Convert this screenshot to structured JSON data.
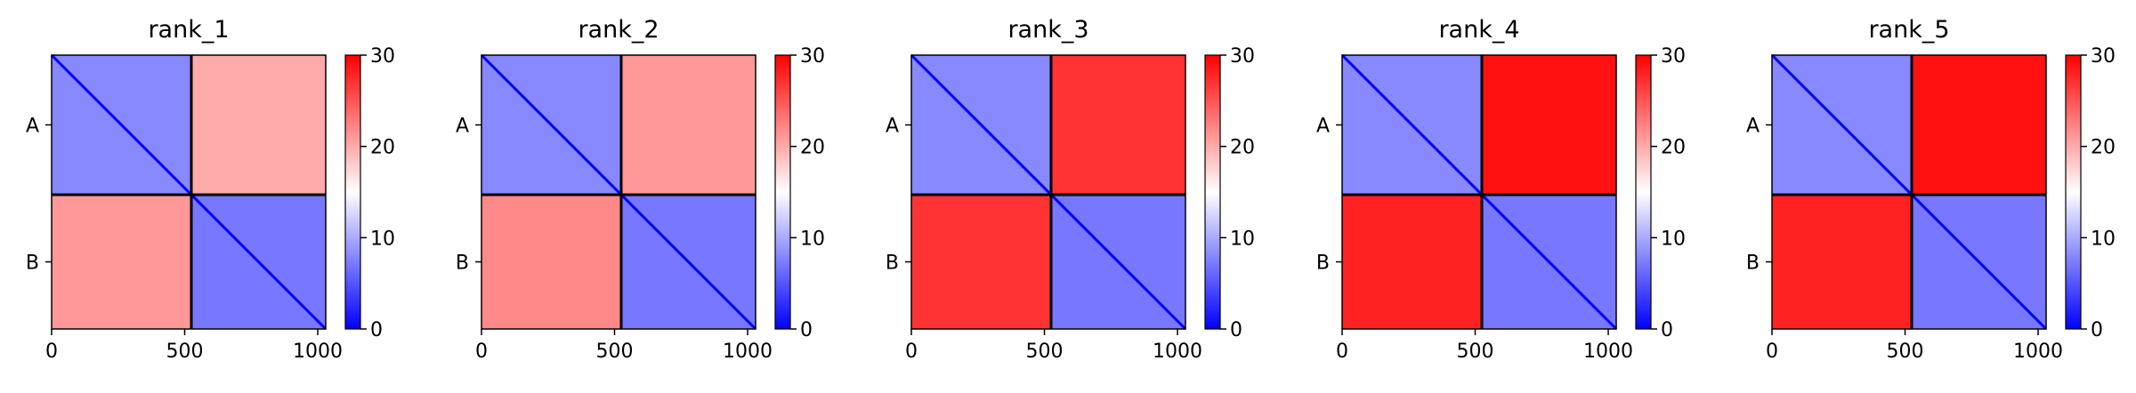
{
  "chart_data": [
    {
      "type": "heatmap",
      "title": "rank_1",
      "x_ticks": [
        0,
        500,
        1000
      ],
      "row_labels": [
        "A",
        "B"
      ],
      "chain_boundary": 525,
      "xlim": [
        0,
        1030
      ],
      "colorbar": {
        "min": 0,
        "max": 30,
        "ticks": [
          0,
          10,
          20,
          30
        ],
        "colors": [
          "#0000ff",
          "#ffffff",
          "#ff0000"
        ]
      },
      "blocks": [
        {
          "rows": [
            0,
            525
          ],
          "cols": [
            0,
            525
          ],
          "value": 8
        },
        {
          "rows": [
            0,
            525
          ],
          "cols": [
            525,
            1030
          ],
          "value": 20
        },
        {
          "rows": [
            525,
            1030
          ],
          "cols": [
            0,
            525
          ],
          "value": 21
        },
        {
          "rows": [
            525,
            1030
          ],
          "cols": [
            525,
            1030
          ],
          "value": 7
        }
      ]
    },
    {
      "type": "heatmap",
      "title": "rank_2",
      "x_ticks": [
        0,
        500,
        1000
      ],
      "row_labels": [
        "A",
        "B"
      ],
      "chain_boundary": 525,
      "xlim": [
        0,
        1030
      ],
      "colorbar": {
        "min": 0,
        "max": 30,
        "ticks": [
          0,
          10,
          20,
          30
        ],
        "colors": [
          "#0000ff",
          "#ffffff",
          "#ff0000"
        ]
      },
      "blocks": [
        {
          "rows": [
            0,
            525
          ],
          "cols": [
            0,
            525
          ],
          "value": 8
        },
        {
          "rows": [
            0,
            525
          ],
          "cols": [
            525,
            1030
          ],
          "value": 21
        },
        {
          "rows": [
            525,
            1030
          ],
          "cols": [
            0,
            525
          ],
          "value": 22
        },
        {
          "rows": [
            525,
            1030
          ],
          "cols": [
            525,
            1030
          ],
          "value": 7
        }
      ]
    },
    {
      "type": "heatmap",
      "title": "rank_3",
      "x_ticks": [
        0,
        500,
        1000
      ],
      "row_labels": [
        "A",
        "B"
      ],
      "chain_boundary": 525,
      "xlim": [
        0,
        1030
      ],
      "colorbar": {
        "min": 0,
        "max": 30,
        "ticks": [
          0,
          10,
          20,
          30
        ],
        "colors": [
          "#0000ff",
          "#ffffff",
          "#ff0000"
        ]
      },
      "blocks": [
        {
          "rows": [
            0,
            525
          ],
          "cols": [
            0,
            525
          ],
          "value": 8
        },
        {
          "rows": [
            0,
            525
          ],
          "cols": [
            525,
            1030
          ],
          "value": 27
        },
        {
          "rows": [
            525,
            1030
          ],
          "cols": [
            0,
            525
          ],
          "value": 27
        },
        {
          "rows": [
            525,
            1030
          ],
          "cols": [
            525,
            1030
          ],
          "value": 7
        }
      ]
    },
    {
      "type": "heatmap",
      "title": "rank_4",
      "x_ticks": [
        0,
        500,
        1000
      ],
      "row_labels": [
        "A",
        "B"
      ],
      "chain_boundary": 525,
      "xlim": [
        0,
        1030
      ],
      "colorbar": {
        "min": 0,
        "max": 30,
        "ticks": [
          0,
          10,
          20,
          30
        ],
        "colors": [
          "#0000ff",
          "#ffffff",
          "#ff0000"
        ]
      },
      "blocks": [
        {
          "rows": [
            0,
            525
          ],
          "cols": [
            0,
            525
          ],
          "value": 8
        },
        {
          "rows": [
            0,
            525
          ],
          "cols": [
            525,
            1030
          ],
          "value": 29
        },
        {
          "rows": [
            525,
            1030
          ],
          "cols": [
            0,
            525
          ],
          "value": 28
        },
        {
          "rows": [
            525,
            1030
          ],
          "cols": [
            525,
            1030
          ],
          "value": 7
        }
      ]
    },
    {
      "type": "heatmap",
      "title": "rank_5",
      "x_ticks": [
        0,
        500,
        1000
      ],
      "row_labels": [
        "A",
        "B"
      ],
      "chain_boundary": 525,
      "xlim": [
        0,
        1030
      ],
      "colorbar": {
        "min": 0,
        "max": 30,
        "ticks": [
          0,
          10,
          20,
          30
        ],
        "colors": [
          "#0000ff",
          "#ffffff",
          "#ff0000"
        ]
      },
      "blocks": [
        {
          "rows": [
            0,
            525
          ],
          "cols": [
            0,
            525
          ],
          "value": 8
        },
        {
          "rows": [
            0,
            525
          ],
          "cols": [
            525,
            1030
          ],
          "value": 29
        },
        {
          "rows": [
            525,
            1030
          ],
          "cols": [
            0,
            525
          ],
          "value": 28
        },
        {
          "rows": [
            525,
            1030
          ],
          "cols": [
            525,
            1030
          ],
          "value": 7
        }
      ]
    }
  ]
}
